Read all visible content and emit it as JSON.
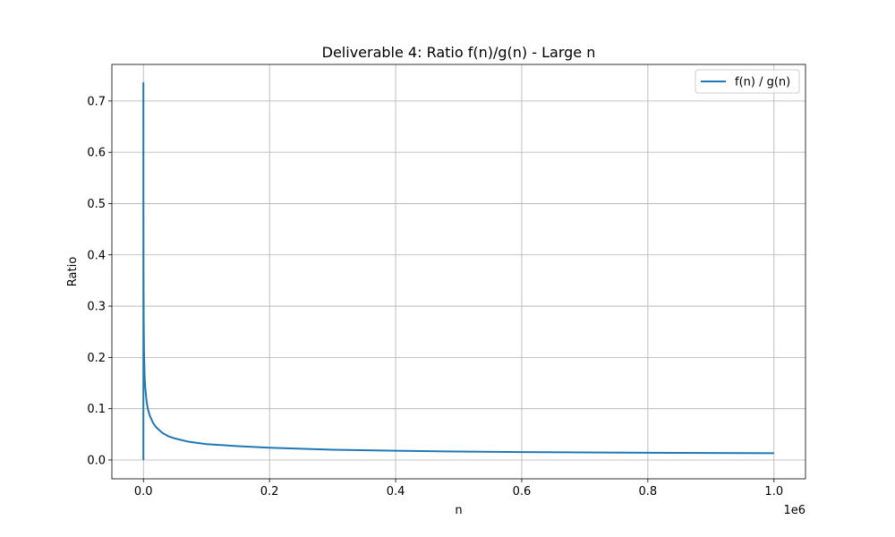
{
  "chart_data": {
    "type": "line",
    "title": "Deliverable 4: Ratio f(n)/g(n) - Large n",
    "xlabel": "n",
    "ylabel": "Ratio",
    "x_offset_label": "1e6",
    "xlim": [
      -50000,
      1050000
    ],
    "ylim": [
      -0.0367,
      0.7713
    ],
    "x_ticks": [
      0,
      200000,
      400000,
      600000,
      800000,
      1000000
    ],
    "x_tick_labels": [
      "0.0",
      "0.2",
      "0.4",
      "0.6",
      "0.8",
      "1.0"
    ],
    "y_ticks": [
      0.0,
      0.1,
      0.2,
      0.3,
      0.4,
      0.5,
      0.6,
      0.7
    ],
    "y_tick_labels": [
      "0.0",
      "0.1",
      "0.2",
      "0.3",
      "0.4",
      "0.5",
      "0.6",
      "0.7"
    ],
    "grid": true,
    "legend_position": "top-right",
    "colors": {
      "series": "#1f77b4",
      "grid": "#b0b0b0",
      "axes": "#000000"
    },
    "series": [
      {
        "name": "f(n) / g(n)",
        "x": [
          1,
          2,
          5,
          10,
          50,
          100,
          200,
          500,
          1000,
          2000,
          3000,
          5000,
          7000,
          10000,
          15000,
          20000,
          30000,
          40000,
          50000,
          70000,
          100000,
          150000,
          200000,
          300000,
          400000,
          500000,
          600000,
          700000,
          800000,
          900000,
          1000000
        ],
        "y": [
          0.0,
          0.735,
          0.72,
          0.66,
          0.52,
          0.43,
          0.36,
          0.27,
          0.21,
          0.16,
          0.14,
          0.115,
          0.1,
          0.087,
          0.073,
          0.064,
          0.053,
          0.046,
          0.042,
          0.036,
          0.031,
          0.027,
          0.024,
          0.02,
          0.018,
          0.0165,
          0.0155,
          0.0148,
          0.0142,
          0.0137,
          0.0133
        ]
      }
    ]
  }
}
